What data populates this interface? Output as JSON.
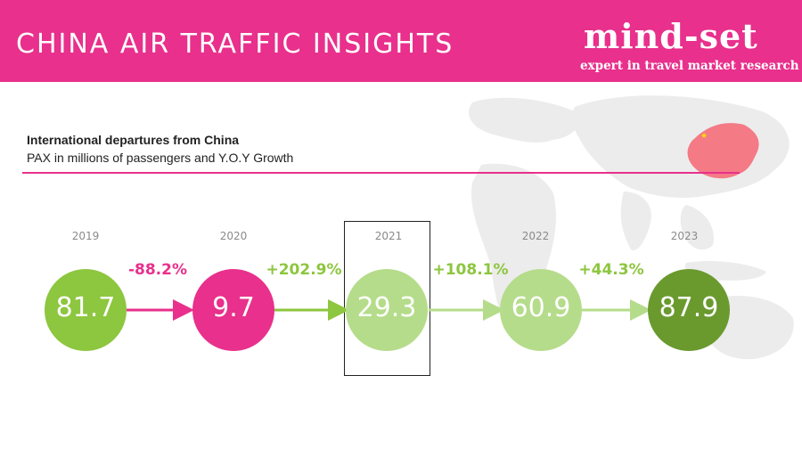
{
  "header": {
    "title": "CHINA AIR TRAFFIC INSIGHTS",
    "logo_text": "mind-set",
    "logo_tagline": "expert in travel market research"
  },
  "colors": {
    "pink": "#e8308c",
    "green": "#8dc63f",
    "light_green": "#b5dc8a",
    "dark_green": "#6a9a2e"
  },
  "subtitle": {
    "line1": "International departures from China",
    "line2": "PAX in millions of passengers and Y.O.Y Growth"
  },
  "chart_data": {
    "type": "bubble-timeline",
    "series": [
      {
        "name": "PAX",
        "values": [
          81.7,
          9.7,
          29.3,
          60.9,
          87.9
        ]
      }
    ],
    "categories": [
      "2019",
      "2020",
      "2021",
      "2022",
      "2023"
    ],
    "values": [
      81.7,
      9.7,
      29.3,
      60.9,
      87.9
    ],
    "value_labels": [
      "81.7",
      "9.7",
      "29.3",
      "60.9",
      "87.9"
    ],
    "growth_labels": [
      "-88.2%",
      "+202.9%",
      "+108.1%",
      "+44.3%"
    ],
    "growth": [
      -88.2,
      202.9,
      108.1,
      44.3
    ],
    "highlighted": "2021",
    "point_colors": [
      "#8dc63f",
      "#e8308c",
      "#b5dc8a",
      "#b5dc8a",
      "#6a9a2e"
    ],
    "growth_colors": [
      "#e8308c",
      "#8dc63f",
      "#8dc63f",
      "#8dc63f"
    ]
  }
}
